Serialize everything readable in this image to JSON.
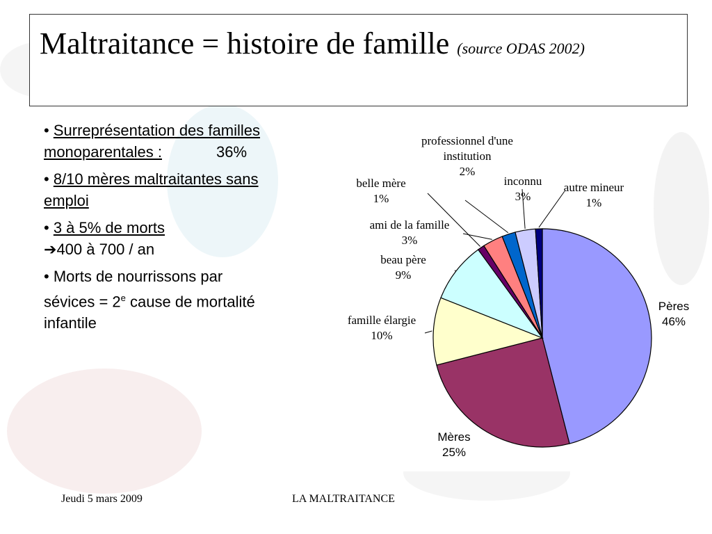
{
  "slide": {
    "title": "Maltraitance = histoire de famille",
    "title_source": "(source ODAS 2002)"
  },
  "bullets": {
    "b1_text": "Surreprésentation des familles monoparentales :",
    "b1_value": "36%",
    "b2_text": "8/10 mères maltraitantes sans emploi",
    "b3_text": "3 à 5% de morts",
    "b3_detail": "400 à 700 / an",
    "b4_text_a": "Morts de nourrissons par sévices = 2",
    "b4_sup": "e",
    "b4_text_b": " cause de mortalité infantile"
  },
  "footer": {
    "date": "Jeudi 5 mars 2009",
    "title": "LA MALTRAITANCE"
  },
  "chart_data": {
    "type": "pie",
    "title": "",
    "slices": [
      {
        "label": "Pères",
        "value": 46,
        "value_label": "46%",
        "color": "#9999ff"
      },
      {
        "label": "Mères",
        "value": 25,
        "value_label": "25%",
        "color": "#993366"
      },
      {
        "label": "famille élargie",
        "value": 10,
        "value_label": "10%",
        "color": "#ffffcc"
      },
      {
        "label": "beau père",
        "value": 9,
        "value_label": "9%",
        "color": "#ccffff"
      },
      {
        "label": "belle mère",
        "value": 1,
        "value_label": "1%",
        "color": "#660066"
      },
      {
        "label": "ami de la famille",
        "value": 3,
        "value_label": "3%",
        "color": "#ff8080"
      },
      {
        "label": "professionnel d'une institution",
        "value": 2,
        "value_label": "2%",
        "color": "#0066cc"
      },
      {
        "label": "inconnu",
        "value": 3,
        "value_label": "3%",
        "color": "#ccccff"
      },
      {
        "label": "autre mineur",
        "value": 1,
        "value_label": "1%",
        "color": "#000080"
      }
    ]
  }
}
